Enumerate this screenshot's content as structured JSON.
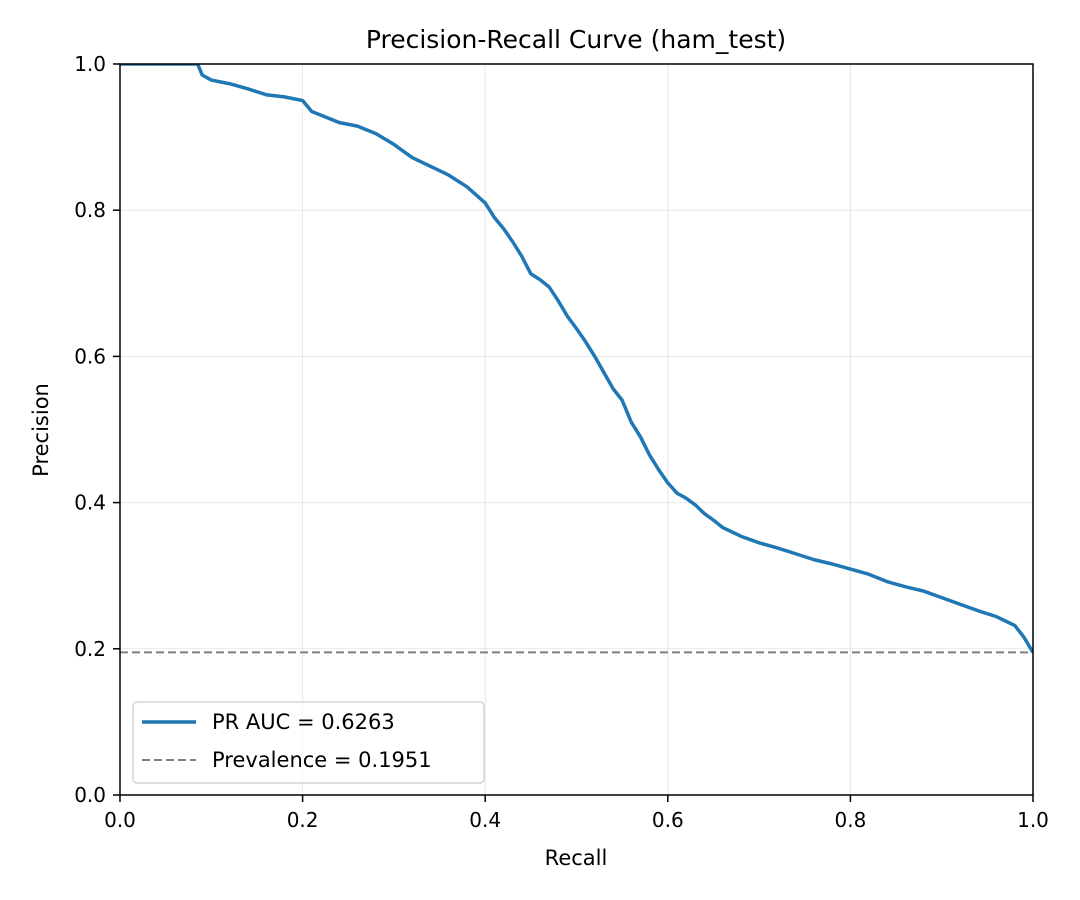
{
  "chart_data": {
    "type": "line",
    "title": "Precision-Recall Curve (ham_test)",
    "xlabel": "Recall",
    "ylabel": "Precision",
    "xlim": [
      0.0,
      1.0
    ],
    "ylim": [
      0.0,
      1.0
    ],
    "xticks": [
      "0.0",
      "0.2",
      "0.4",
      "0.6",
      "0.8",
      "1.0"
    ],
    "yticks": [
      "0.0",
      "0.2",
      "0.4",
      "0.6",
      "0.8",
      "1.0"
    ],
    "grid": true,
    "legend_position": "lower-left",
    "series": [
      {
        "name": "PR AUC = 0.6263",
        "style": "solid",
        "color": "#1f77b4",
        "x": [
          0.0,
          0.05,
          0.085,
          0.09,
          0.1,
          0.12,
          0.14,
          0.16,
          0.18,
          0.2,
          0.21,
          0.22,
          0.24,
          0.26,
          0.28,
          0.3,
          0.32,
          0.34,
          0.36,
          0.38,
          0.4,
          0.41,
          0.42,
          0.43,
          0.44,
          0.45,
          0.46,
          0.47,
          0.48,
          0.49,
          0.5,
          0.51,
          0.52,
          0.53,
          0.54,
          0.55,
          0.56,
          0.57,
          0.58,
          0.59,
          0.6,
          0.61,
          0.62,
          0.63,
          0.64,
          0.65,
          0.66,
          0.68,
          0.7,
          0.72,
          0.74,
          0.76,
          0.78,
          0.8,
          0.82,
          0.84,
          0.86,
          0.88,
          0.9,
          0.92,
          0.94,
          0.96,
          0.98,
          0.99,
          1.0
        ],
        "y": [
          1.0,
          1.0,
          1.0,
          0.985,
          0.978,
          0.973,
          0.966,
          0.958,
          0.955,
          0.95,
          0.935,
          0.93,
          0.92,
          0.915,
          0.905,
          0.89,
          0.872,
          0.86,
          0.848,
          0.832,
          0.81,
          0.79,
          0.775,
          0.757,
          0.737,
          0.713,
          0.705,
          0.695,
          0.676,
          0.655,
          0.638,
          0.62,
          0.6,
          0.578,
          0.556,
          0.54,
          0.51,
          0.49,
          0.465,
          0.445,
          0.427,
          0.413,
          0.406,
          0.397,
          0.385,
          0.376,
          0.366,
          0.354,
          0.345,
          0.338,
          0.33,
          0.322,
          0.316,
          0.309,
          0.302,
          0.292,
          0.285,
          0.279,
          0.27,
          0.261,
          0.252,
          0.244,
          0.232,
          0.216,
          0.195
        ]
      },
      {
        "name": "Prevalence = 0.1951",
        "style": "dashed",
        "color": "#808080",
        "x": [
          0.0,
          1.0
        ],
        "y": [
          0.1951,
          0.1951
        ]
      }
    ]
  }
}
